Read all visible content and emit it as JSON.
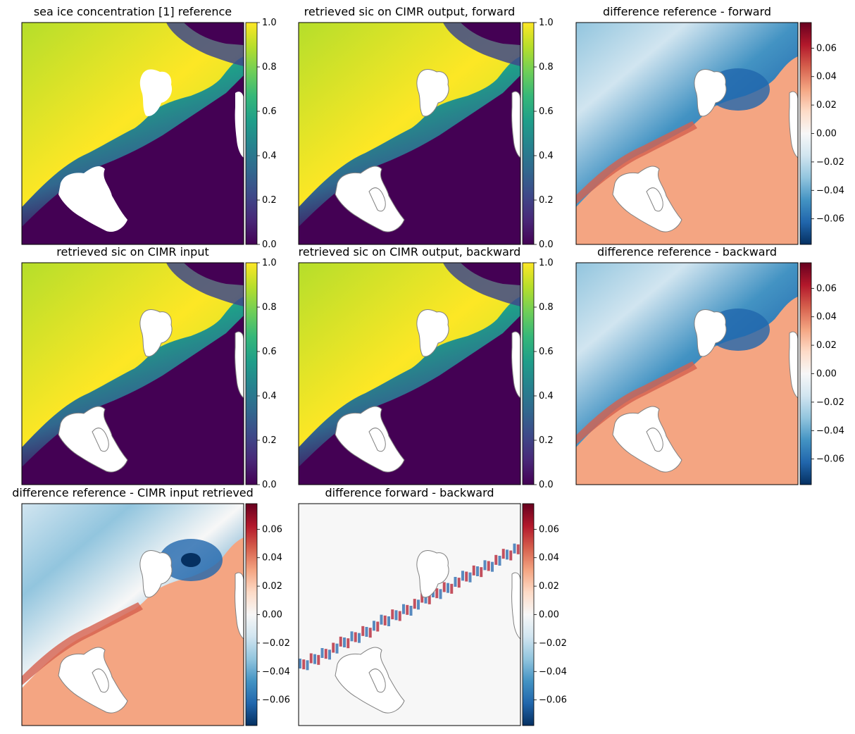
{
  "chart_data": [
    {
      "type": "heatmap",
      "title": "sea ice concentration [1] reference",
      "colormap": "viridis",
      "colorbar": {
        "range": [
          0.0,
          1.0
        ],
        "ticks": [
          "0.0",
          "0.2",
          "0.4",
          "0.6",
          "0.8",
          "1.0"
        ]
      }
    },
    {
      "type": "heatmap",
      "title": "retrieved sic on CIMR output, forward",
      "colormap": "viridis",
      "colorbar": {
        "range": [
          0.0,
          1.0
        ],
        "ticks": [
          "0.0",
          "0.2",
          "0.4",
          "0.6",
          "0.8",
          "1.0"
        ]
      }
    },
    {
      "type": "heatmap",
      "title": "difference reference - forward",
      "colormap": "RdBu_r",
      "colorbar": {
        "range": [
          -0.078,
          0.078
        ],
        "ticks": [
          "−0.06",
          "−0.04",
          "−0.02",
          "0.00",
          "0.02",
          "0.04",
          "0.06"
        ]
      }
    },
    {
      "type": "heatmap",
      "title": "retrieved sic on CIMR input",
      "colormap": "viridis",
      "colorbar": {
        "range": [
          0.0,
          1.0
        ],
        "ticks": [
          "0.0",
          "0.2",
          "0.4",
          "0.6",
          "0.8",
          "1.0"
        ]
      }
    },
    {
      "type": "heatmap",
      "title": "retrieved sic on CIMR output, backward",
      "colormap": "viridis",
      "colorbar": {
        "range": [
          0.0,
          1.0
        ],
        "ticks": [
          "0.0",
          "0.2",
          "0.4",
          "0.6",
          "0.8",
          "1.0"
        ]
      }
    },
    {
      "type": "heatmap",
      "title": "difference reference - backward",
      "colormap": "RdBu_r",
      "colorbar": {
        "range": [
          -0.078,
          0.078
        ],
        "ticks": [
          "−0.06",
          "−0.04",
          "−0.02",
          "0.00",
          "0.02",
          "0.04",
          "0.06"
        ]
      }
    },
    {
      "type": "heatmap",
      "title": "difference reference - CIMR input retrieved",
      "colormap": "RdBu_r",
      "colorbar": {
        "range": [
          -0.078,
          0.078
        ],
        "ticks": [
          "−0.06",
          "−0.04",
          "−0.02",
          "0.00",
          "0.02",
          "0.04",
          "0.06"
        ]
      }
    },
    {
      "type": "heatmap",
      "title": "difference forward - backward",
      "colormap": "RdBu_r",
      "colorbar": {
        "range": [
          -0.078,
          0.078
        ],
        "ticks": [
          "−0.06",
          "−0.04",
          "−0.02",
          "0.00",
          "0.02",
          "0.04",
          "0.06"
        ]
      }
    }
  ],
  "colors": {
    "viridis": [
      "#440154",
      "#482878",
      "#3e4989",
      "#31688e",
      "#26828e",
      "#1f9e89",
      "#35b779",
      "#6ece58",
      "#b5de2b",
      "#fde725"
    ],
    "rdbu": [
      "#053061",
      "#2166ac",
      "#4393c3",
      "#92c5de",
      "#d1e5f0",
      "#f7f7f7",
      "#fddbc7",
      "#f4a582",
      "#d6604d",
      "#b2182b",
      "#67001f"
    ],
    "land": "#ffffff",
    "coastline": "#808080"
  }
}
